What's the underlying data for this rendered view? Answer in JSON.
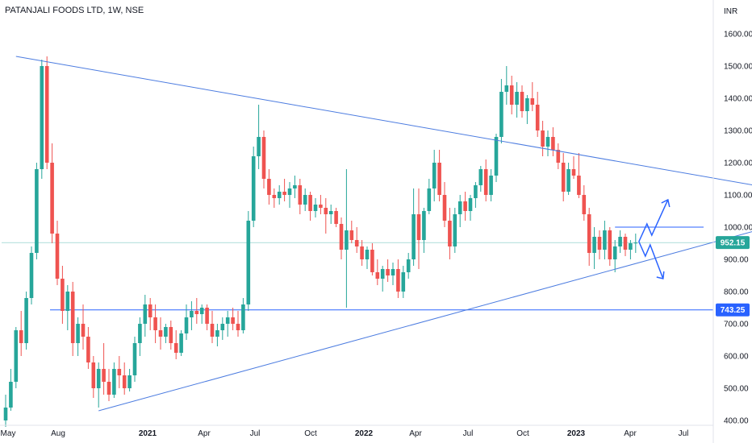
{
  "header": {
    "title": "PATANJALI FOODS LTD, 1W, NSE"
  },
  "chart_data": {
    "type": "candlestick",
    "currency_label": "INR",
    "yticks": [
      "1600.00",
      "1500.00",
      "1400.00",
      "1300.00",
      "1200.00",
      "1100.00",
      "1000.00",
      "900.00",
      "800.00",
      "700.00",
      "600.00",
      "500.00",
      "400.00"
    ],
    "ytick_values": [
      1600,
      1500,
      1400,
      1300,
      1200,
      1100,
      1000,
      900,
      800,
      700,
      600,
      500,
      400
    ],
    "xticks": [
      {
        "label": "May",
        "bold": false
      },
      {
        "label": "Aug",
        "bold": false
      },
      {
        "label": "2021",
        "bold": true
      },
      {
        "label": "Apr",
        "bold": false
      },
      {
        "label": "Jul",
        "bold": false
      },
      {
        "label": "Oct",
        "bold": false
      },
      {
        "label": "2022",
        "bold": true
      },
      {
        "label": "Apr",
        "bold": false
      },
      {
        "label": "Jul",
        "bold": false
      },
      {
        "label": "Oct",
        "bold": false
      },
      {
        "label": "2023",
        "bold": true
      },
      {
        "label": "Apr",
        "bold": false
      },
      {
        "label": "Jul",
        "bold": false
      }
    ],
    "ylim": [
      385,
      1660
    ],
    "colors": {
      "up": "#26a69a",
      "down": "#ef5350",
      "trend": "#4c7ce0",
      "level": "#2962ff",
      "current": "#26a69a"
    },
    "current_price": {
      "label": "952.15",
      "value": 952.15
    },
    "support_level": {
      "label": "743.25",
      "value": 743.25
    },
    "resistance_level": {
      "value": 1000
    },
    "trendlines": [
      {
        "name": "descending-trendline",
        "from": {
          "bar": 2,
          "price": 1530
        },
        "to": {
          "bar": 160,
          "price": 1088
        }
      },
      {
        "name": "ascending-trendline",
        "from": {
          "bar": 18,
          "price": 430
        },
        "to": {
          "bar": 150,
          "price": 1010
        }
      }
    ],
    "candles": [
      [
        400,
        480,
        380,
        440
      ],
      [
        440,
        560,
        430,
        520
      ],
      [
        520,
        690,
        500,
        680
      ],
      [
        680,
        740,
        600,
        640
      ],
      [
        640,
        800,
        620,
        780
      ],
      [
        780,
        940,
        760,
        920
      ],
      [
        920,
        1200,
        900,
        1180
      ],
      [
        1180,
        1520,
        1150,
        1500
      ],
      [
        1500,
        1530,
        1180,
        1200
      ],
      [
        1200,
        1260,
        950,
        980
      ],
      [
        980,
        1020,
        820,
        840
      ],
      [
        840,
        880,
        700,
        740
      ],
      [
        740,
        820,
        680,
        800
      ],
      [
        800,
        830,
        600,
        640
      ],
      [
        640,
        720,
        600,
        700
      ],
      [
        700,
        760,
        620,
        660
      ],
      [
        660,
        690,
        560,
        580
      ],
      [
        580,
        600,
        470,
        500
      ],
      [
        500,
        580,
        440,
        560
      ],
      [
        560,
        640,
        480,
        520
      ],
      [
        520,
        560,
        460,
        480
      ],
      [
        480,
        580,
        470,
        560
      ],
      [
        560,
        600,
        500,
        540
      ],
      [
        540,
        580,
        480,
        500
      ],
      [
        500,
        560,
        490,
        540
      ],
      [
        540,
        660,
        520,
        640
      ],
      [
        640,
        720,
        600,
        700
      ],
      [
        700,
        790,
        660,
        760
      ],
      [
        760,
        780,
        680,
        720
      ],
      [
        720,
        760,
        640,
        680
      ],
      [
        680,
        720,
        620,
        660
      ],
      [
        660,
        700,
        640,
        690
      ],
      [
        690,
        710,
        620,
        640
      ],
      [
        640,
        680,
        590,
        610
      ],
      [
        610,
        680,
        600,
        670
      ],
      [
        670,
        760,
        650,
        720
      ],
      [
        720,
        770,
        680,
        740
      ],
      [
        740,
        780,
        700,
        730
      ],
      [
        730,
        760,
        700,
        750
      ],
      [
        750,
        760,
        680,
        700
      ],
      [
        700,
        740,
        640,
        660
      ],
      [
        660,
        700,
        630,
        680
      ],
      [
        680,
        720,
        650,
        700
      ],
      [
        700,
        740,
        660,
        720
      ],
      [
        720,
        750,
        680,
        700
      ],
      [
        700,
        740,
        660,
        680
      ],
      [
        680,
        780,
        670,
        760
      ],
      [
        760,
        1050,
        740,
        1020
      ],
      [
        1020,
        1250,
        1000,
        1220
      ],
      [
        1220,
        1380,
        1180,
        1280
      ],
      [
        1280,
        1300,
        1120,
        1150
      ],
      [
        1150,
        1180,
        1070,
        1100
      ],
      [
        1100,
        1120,
        1060,
        1090
      ],
      [
        1090,
        1130,
        1070,
        1110
      ],
      [
        1110,
        1150,
        1080,
        1100
      ],
      [
        1100,
        1140,
        1060,
        1120
      ],
      [
        1120,
        1160,
        1090,
        1130
      ],
      [
        1130,
        1150,
        1040,
        1070
      ],
      [
        1070,
        1120,
        1050,
        1100
      ],
      [
        1100,
        1110,
        1020,
        1050
      ],
      [
        1050,
        1090,
        1030,
        1070
      ],
      [
        1070,
        1100,
        1040,
        1060
      ],
      [
        1060,
        1090,
        980,
        1040
      ],
      [
        1040,
        1070,
        1010,
        1050
      ],
      [
        1050,
        1060,
        1000,
        1010
      ],
      [
        1010,
        1030,
        900,
        930
      ],
      [
        930,
        1180,
        750,
        990
      ],
      [
        990,
        1020,
        950,
        960
      ],
      [
        960,
        1000,
        920,
        940
      ],
      [
        940,
        960,
        880,
        900
      ],
      [
        900,
        940,
        870,
        930
      ],
      [
        930,
        950,
        850,
        860
      ],
      [
        860,
        900,
        820,
        840
      ],
      [
        840,
        880,
        800,
        870
      ],
      [
        870,
        900,
        830,
        850
      ],
      [
        850,
        890,
        820,
        870
      ],
      [
        870,
        900,
        780,
        800
      ],
      [
        800,
        880,
        780,
        860
      ],
      [
        860,
        920,
        840,
        900
      ],
      [
        900,
        1120,
        880,
        1040
      ],
      [
        1040,
        1120,
        870,
        960
      ],
      [
        960,
        1060,
        920,
        1050
      ],
      [
        1050,
        1150,
        1040,
        1120
      ],
      [
        1120,
        1240,
        1080,
        1200
      ],
      [
        1200,
        1240,
        1080,
        1100
      ],
      [
        1100,
        1140,
        1000,
        1020
      ],
      [
        1020,
        1060,
        900,
        940
      ],
      [
        940,
        1060,
        920,
        1040
      ],
      [
        1040,
        1100,
        1000,
        1080
      ],
      [
        1080,
        1110,
        1020,
        1050
      ],
      [
        1050,
        1100,
        1020,
        1090
      ],
      [
        1090,
        1140,
        1060,
        1130
      ],
      [
        1130,
        1190,
        1110,
        1180
      ],
      [
        1180,
        1210,
        1080,
        1100
      ],
      [
        1100,
        1180,
        1080,
        1160
      ],
      [
        1160,
        1290,
        1140,
        1280
      ],
      [
        1280,
        1460,
        1260,
        1420
      ],
      [
        1420,
        1500,
        1380,
        1440
      ],
      [
        1440,
        1470,
        1350,
        1380
      ],
      [
        1380,
        1450,
        1340,
        1420
      ],
      [
        1420,
        1440,
        1340,
        1360
      ],
      [
        1360,
        1410,
        1320,
        1400
      ],
      [
        1400,
        1450,
        1360,
        1380
      ],
      [
        1380,
        1420,
        1280,
        1300
      ],
      [
        1300,
        1330,
        1220,
        1250
      ],
      [
        1250,
        1300,
        1220,
        1280
      ],
      [
        1280,
        1310,
        1220,
        1240
      ],
      [
        1240,
        1260,
        1180,
        1200
      ],
      [
        1200,
        1230,
        1080,
        1110
      ],
      [
        1110,
        1200,
        1100,
        1180
      ],
      [
        1180,
        1220,
        1150,
        1160
      ],
      [
        1160,
        1230,
        1090,
        1100
      ],
      [
        1100,
        1130,
        1020,
        1040
      ],
      [
        1040,
        1060,
        880,
        920
      ],
      [
        920,
        1000,
        870,
        970
      ],
      [
        970,
        990,
        900,
        930
      ],
      [
        930,
        1020,
        900,
        990
      ],
      [
        990,
        1000,
        880,
        900
      ],
      [
        900,
        960,
        860,
        940
      ],
      [
        940,
        990,
        920,
        970
      ],
      [
        970,
        980,
        910,
        930
      ],
      [
        930,
        960,
        900,
        950
      ],
      [
        950,
        980,
        920,
        952
      ]
    ]
  }
}
